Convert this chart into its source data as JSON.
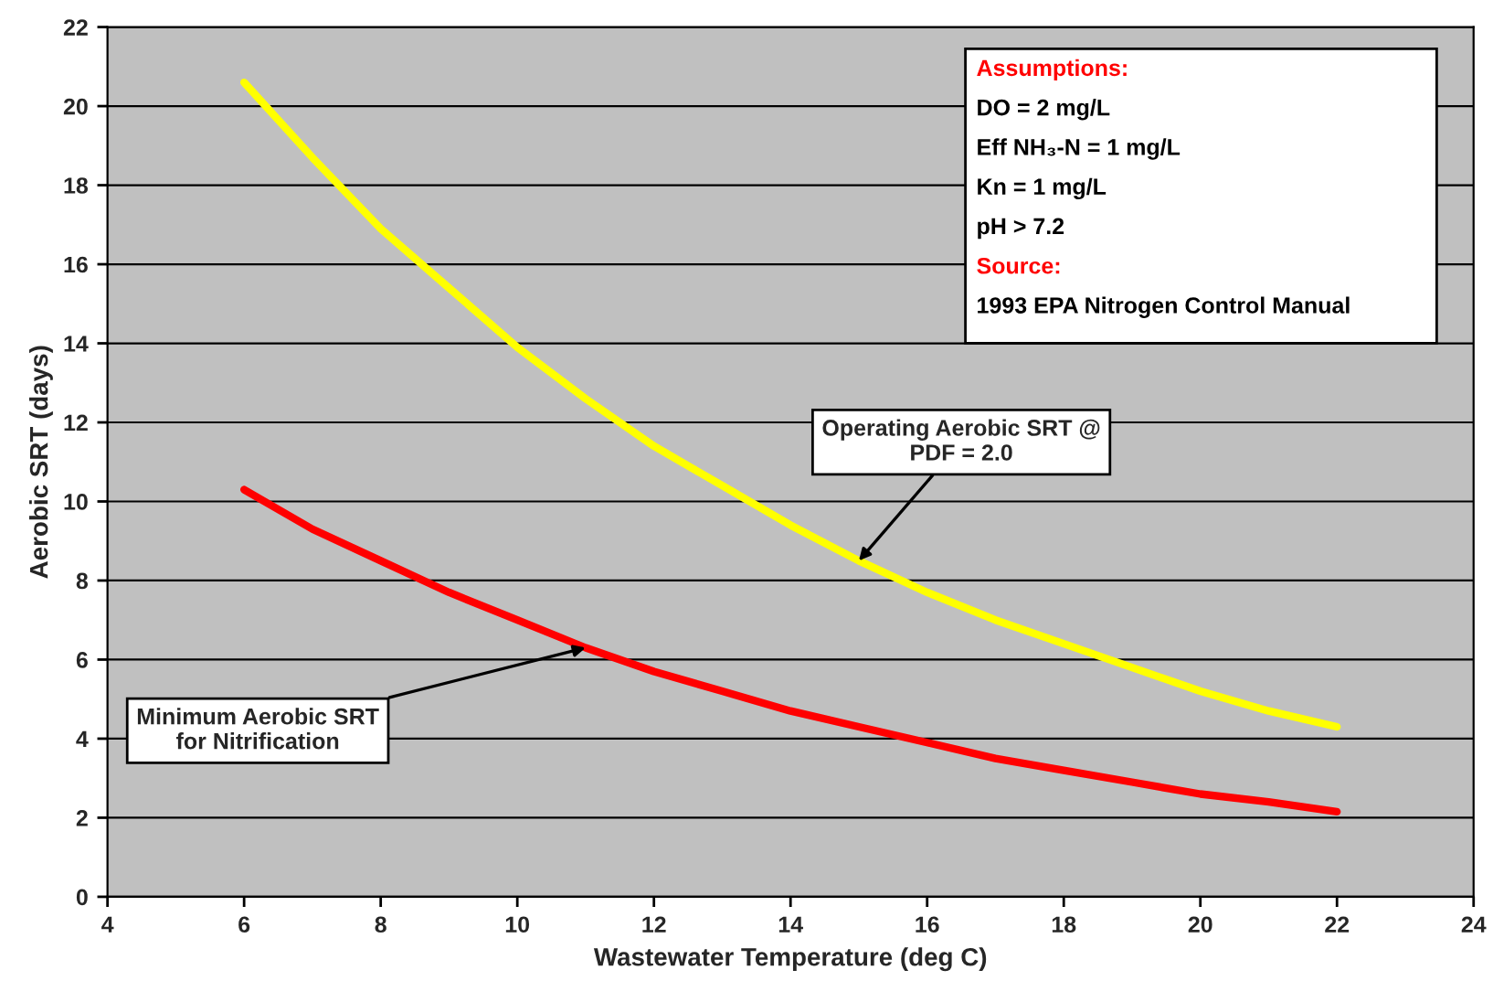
{
  "chart_data": {
    "type": "line",
    "xlabel": "Wastewater Temperature (deg C)",
    "ylabel": "Aerobic SRT (days)",
    "x": [
      6,
      7,
      8,
      9,
      10,
      11,
      12,
      13,
      14,
      15,
      16,
      17,
      18,
      19,
      20,
      21,
      22
    ],
    "series": [
      {
        "color": "#ffff00",
        "values": [
          20.6,
          18.7,
          16.9,
          15.4,
          13.9,
          12.6,
          11.4,
          10.4,
          9.4,
          8.5,
          7.7,
          7.0,
          6.4,
          5.8,
          5.2,
          4.7,
          4.3
        ]
      },
      {
        "color": "#ff0000",
        "values": [
          10.3,
          9.3,
          8.5,
          7.7,
          7.0,
          6.3,
          5.7,
          5.2,
          4.7,
          4.3,
          3.9,
          3.5,
          3.2,
          2.9,
          2.6,
          2.4,
          2.15
        ]
      }
    ],
    "xlim": [
      4,
      24
    ],
    "xticks": [
      4,
      6,
      8,
      10,
      12,
      14,
      16,
      18,
      20,
      22,
      24
    ],
    "ylim": [
      0,
      22
    ],
    "yticks": [
      0,
      2,
      4,
      6,
      8,
      10,
      12,
      14,
      16,
      18,
      20,
      22
    ],
    "grid": "y",
    "marker": "none",
    "line_style": "solid",
    "legend": false,
    "annotations": [
      "Assumptions:",
      "DO = 2 mg/L",
      "Eff NH₃-N = 1 mg/L",
      "Kn = 1 mg/L",
      "pH > 7.2",
      "Source:",
      "1993 EPA Nitrogen Control Manual",
      {
        "text": "Operating Aerobic SRT @\nPDF = 2.0",
        "x": 15,
        "y": 8.5
      },
      {
        "text": "Minimum Aerobic SRT\nfor Nitrification",
        "x": 11,
        "y": 6.3
      }
    ]
  }
}
